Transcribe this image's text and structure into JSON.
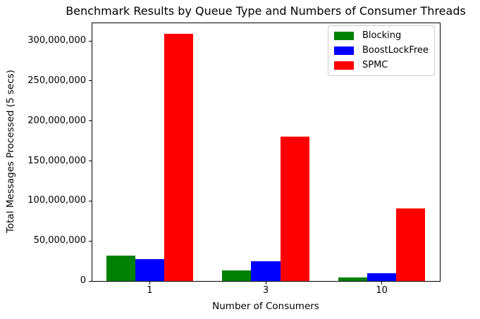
{
  "chart_data": {
    "type": "bar",
    "title": "Benchmark Results by Queue Type and Numbers of Consumer Threads",
    "xlabel": "Number of Consumers",
    "ylabel": "Total Messages Processed (5 secs)",
    "categories": [
      "1",
      "3",
      "10"
    ],
    "series": [
      {
        "name": "Blocking",
        "color": "#008000",
        "values": [
          32000000,
          13000000,
          4000000
        ]
      },
      {
        "name": "BoostLockFree",
        "color": "#0000ff",
        "values": [
          27000000,
          25000000,
          10000000
        ]
      },
      {
        "name": "SPMC",
        "color": "#ff0000",
        "values": [
          309000000,
          180000000,
          91000000
        ]
      }
    ],
    "ylim": [
      0,
      323000000
    ],
    "yticks": [
      0,
      50000000,
      100000000,
      150000000,
      200000000,
      250000000,
      300000000
    ],
    "legend_position": "upper right",
    "grid": false
  }
}
